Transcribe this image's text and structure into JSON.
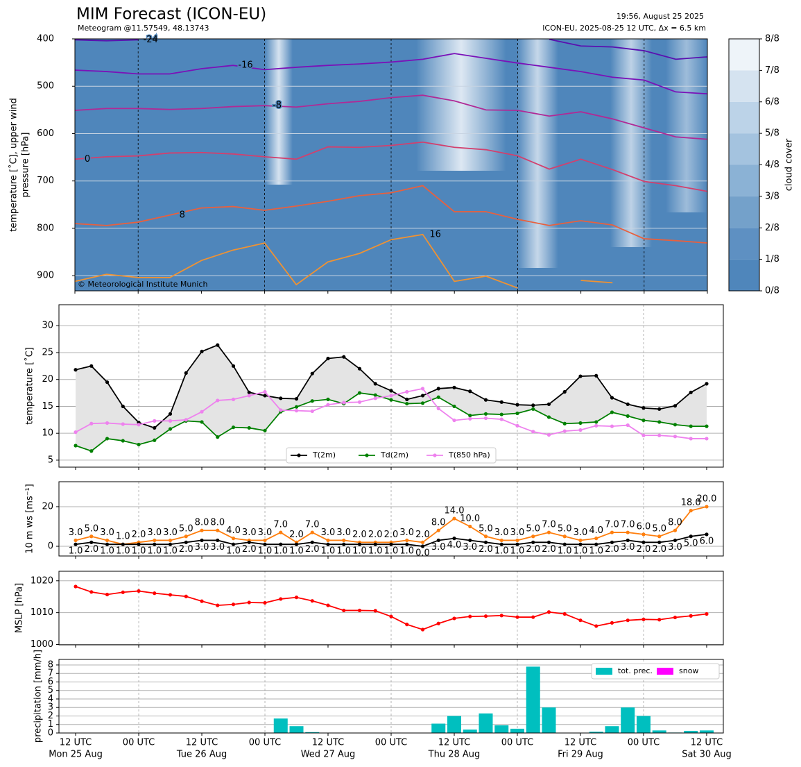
{
  "chart_data": [
    {
      "type": "contour",
      "title": "MIM Forecast (ICON-EU)",
      "subtitle": "Meteogram @11.57549, 48.13743",
      "run_time": "19:56, August 25 2025",
      "model_info": "ICON-EU, 2025-08-25 12 UTC, Δx = 6.5 km",
      "copyright": "© Meteorological Institute Munich",
      "ylabel": [
        "temperature [˚C], upper wind",
        "pressure [hPa]"
      ],
      "x": [
        0,
        6,
        12,
        18,
        24,
        30,
        36,
        42,
        48,
        54,
        60,
        66,
        72,
        78,
        84,
        90,
        96,
        102,
        108,
        114,
        120
      ],
      "xlim": [
        0,
        120
      ],
      "ylim": [
        400,
        932
      ],
      "y_inverted": true,
      "yticks": [
        400,
        500,
        600,
        700,
        800,
        900
      ],
      "grid": true,
      "series": [
        {
          "name": "-24",
          "color": "#5a10b0",
          "values": [
            402,
            404,
            402,
            null,
            null,
            null,
            null,
            null,
            null,
            null,
            null,
            null,
            null,
            null,
            null,
            401,
            415,
            417,
            425,
            443,
            438
          ]
        },
        {
          "name": "-16",
          "color": "#7a12b8",
          "values": [
            466,
            469,
            474,
            474,
            463,
            456,
            465,
            460,
            456,
            453,
            449,
            443,
            431,
            441,
            451,
            460,
            469,
            481,
            487,
            512,
            516
          ]
        },
        {
          "name": "-8",
          "color": "#b02a96",
          "values": [
            551,
            547,
            547,
            549,
            547,
            543,
            541,
            544,
            537,
            532,
            524,
            519,
            531,
            550,
            551,
            563,
            554,
            569,
            588,
            607,
            612
          ]
        },
        {
          "name": "0",
          "color": "#d2406e",
          "values": [
            654,
            649,
            647,
            641,
            640,
            643,
            649,
            654,
            628,
            629,
            625,
            618,
            629,
            634,
            647,
            675,
            654,
            676,
            701,
            710,
            722
          ]
        },
        {
          "name": "8",
          "color": "#e8603e",
          "values": [
            790,
            794,
            787,
            772,
            757,
            754,
            762,
            753,
            743,
            731,
            725,
            710,
            765,
            765,
            781,
            794,
            784,
            793,
            822,
            826,
            831
          ]
        },
        {
          "name": "16",
          "color": "#f09232",
          "values": [
            912,
            897,
            904,
            904,
            868,
            846,
            831,
            919,
            871,
            853,
            824,
            813,
            912,
            901,
            926,
            null,
            910,
            915,
            null,
            null,
            null
          ]
        }
      ],
      "colorbar": {
        "label": "cloud cover",
        "ticks": [
          {
            "value": 0,
            "label": "0/8"
          },
          {
            "value": 1,
            "label": "1/8"
          },
          {
            "value": 2,
            "label": "2/8"
          },
          {
            "value": 3,
            "label": "3/8"
          },
          {
            "value": 4,
            "label": "4/8"
          },
          {
            "value": 5,
            "label": "5/8"
          },
          {
            "value": 6,
            "label": "6/8"
          },
          {
            "value": 7,
            "label": "7/8"
          },
          {
            "value": 8,
            "label": "8/8"
          }
        ],
        "colors": [
          "#4f86bb",
          "#5e90c2",
          "#74a1ca",
          "#8bb2d5",
          "#a4c3df",
          "#bcd3e8",
          "#d5e3f0",
          "#eef4f9"
        ]
      }
    },
    {
      "type": "line",
      "ylabel": "temperature [˚C]",
      "x": [
        0,
        3,
        6,
        9,
        12,
        15,
        18,
        21,
        24,
        27,
        30,
        33,
        36,
        39,
        42,
        45,
        48,
        51,
        54,
        57,
        60,
        63,
        66,
        69,
        72,
        75,
        78,
        81,
        84,
        87,
        90,
        93,
        96,
        99,
        102,
        105,
        108,
        111,
        114,
        117,
        120
      ],
      "xlim": [
        -3.17,
        123.17
      ],
      "ylim": [
        3.7,
        33.9
      ],
      "yticks": [
        5,
        10,
        15,
        20,
        25,
        30
      ],
      "grid": true,
      "fill_between": [
        0,
        1
      ],
      "fill_color": "#e4e4e4",
      "legend": "lower center",
      "series": [
        {
          "name": "T(2m)",
          "color": "#000000",
          "values": [
            21.8,
            22.5,
            19.5,
            15.0,
            12.0,
            11.0,
            13.6,
            21.2,
            25.2,
            26.4,
            22.5,
            17.6,
            17.0,
            16.5,
            16.4,
            21.1,
            23.9,
            24.2,
            22.0,
            19.2,
            17.9,
            16.3,
            17.0,
            18.3,
            18.5,
            17.8,
            16.2,
            15.8,
            15.3,
            15.2,
            15.4,
            17.7,
            20.6,
            20.7,
            16.6,
            15.4,
            14.7,
            14.5,
            15.1,
            17.6,
            19.2
          ]
        },
        {
          "name": "Td(2m)",
          "color": "#008000",
          "values": [
            7.7,
            6.7,
            9.0,
            8.6,
            7.9,
            8.7,
            10.8,
            12.3,
            12.1,
            9.3,
            11.1,
            11.0,
            10.5,
            14.0,
            14.9,
            16.0,
            16.3,
            15.5,
            17.5,
            17.1,
            16.2,
            15.5,
            15.6,
            16.7,
            15.0,
            13.3,
            13.6,
            13.5,
            13.7,
            14.5,
            13.0,
            11.8,
            11.9,
            12.1,
            13.9,
            13.2,
            12.4,
            12.1,
            11.6,
            11.3,
            11.3
          ]
        },
        {
          "name": "T(850 hPa)",
          "color": "#ee82ee",
          "values": [
            10.2,
            11.8,
            11.9,
            11.7,
            11.6,
            12.3,
            12.3,
            12.5,
            14.0,
            16.1,
            16.3,
            17.0,
            17.7,
            14.3,
            14.2,
            14.1,
            15.3,
            15.7,
            15.8,
            16.5,
            17.0,
            17.7,
            18.3,
            14.6,
            12.4,
            12.7,
            12.8,
            12.6,
            11.4,
            10.3,
            9.7,
            10.4,
            10.6,
            11.4,
            11.3,
            11.5,
            9.6,
            9.6,
            9.4,
            9.0,
            9.0
          ]
        }
      ]
    },
    {
      "type": "line",
      "ylabel": "10 m ws [ms⁻¹]",
      "x": [
        0,
        3,
        6,
        9,
        12,
        15,
        18,
        21,
        24,
        27,
        30,
        33,
        36,
        39,
        42,
        45,
        48,
        51,
        54,
        57,
        60,
        63,
        66,
        69,
        72,
        75,
        78,
        81,
        84,
        87,
        90,
        93,
        96,
        99,
        102,
        105,
        108,
        111,
        114,
        117,
        120
      ],
      "xlim": [
        -3.17,
        123.17
      ],
      "ylim": [
        -4.9,
        32.6
      ],
      "yticks": [
        0,
        20
      ],
      "grid": true,
      "series": [
        {
          "color": "#ff7f0e",
          "label_position": "above",
          "values": [
            3,
            5,
            3,
            1,
            2,
            3,
            3,
            5,
            8,
            8,
            4,
            3,
            3,
            7,
            2,
            7,
            3,
            3,
            2,
            2,
            2,
            3,
            2,
            8,
            14,
            10,
            5,
            3,
            3,
            5,
            7,
            5,
            3,
            4,
            7,
            7,
            6,
            5,
            8,
            18,
            20
          ],
          "value_labels": [
            "3.0",
            "5.0",
            "3.0",
            "1.0",
            "2.0",
            "3.0",
            "3.0",
            "5.0",
            "8.0",
            "8.0",
            "4.0",
            "3.0",
            "3.0",
            "7.0",
            "2.0",
            "7.0",
            "3.0",
            "3.0",
            "2.0",
            "2.0",
            "2.0",
            "3.0",
            "2.0",
            "8.0",
            "14.0",
            "10.0",
            "5.0",
            "3.0",
            "3.0",
            "5.0",
            "7.0",
            "5.0",
            "3.0",
            "4.0",
            "7.0",
            "7.0",
            "6.0",
            "5.0",
            "8.0",
            "18.0",
            "20.0"
          ]
        },
        {
          "color": "#000000",
          "label_position": "below",
          "values": [
            1,
            2,
            1,
            1,
            1,
            1,
            1,
            2,
            3,
            3,
            1,
            2,
            1,
            1,
            1,
            2,
            1,
            1,
            1,
            1,
            1,
            1,
            0,
            3,
            4,
            3,
            2,
            1,
            1,
            2,
            2,
            1,
            1,
            1,
            2,
            3,
            2,
            2,
            3,
            5,
            6
          ],
          "value_labels": [
            "1.0",
            "2.0",
            "1.0",
            "1.0",
            "1.0",
            "1.0",
            "1.0",
            "2.0",
            "3.0",
            "3.0",
            "1.0",
            "2.0",
            "1.0",
            "1.0",
            "1.0",
            "2.0",
            "1.0",
            "1.0",
            "1.0",
            "1.0",
            "1.0",
            "1.0",
            "0.0",
            "3.0",
            "4.0",
            "3.0",
            "2.0",
            "1.0",
            "1.0",
            "2.0",
            "2.0",
            "1.0",
            "1.0",
            "1.0",
            "2.0",
            "3.0",
            "2.0",
            "2.0",
            "3.0",
            "5.0",
            "6.0"
          ]
        }
      ]
    },
    {
      "type": "line",
      "ylabel": "MSLP [hPa]",
      "x": [
        0,
        3,
        6,
        9,
        12,
        15,
        18,
        21,
        24,
        27,
        30,
        33,
        36,
        39,
        42,
        45,
        48,
        51,
        54,
        57,
        60,
        63,
        66,
        69,
        72,
        75,
        78,
        81,
        84,
        87,
        90,
        93,
        96,
        99,
        102,
        105,
        108,
        111,
        114,
        117,
        120
      ],
      "xlim": [
        -3.17,
        123.17
      ],
      "ylim": [
        999.9,
        1023.0
      ],
      "yticks": [
        1000,
        1010,
        1020
      ],
      "grid": true,
      "series": [
        {
          "color": "#ff0000",
          "values": [
            1018.2,
            1016.5,
            1015.7,
            1016.4,
            1016.8,
            1016.1,
            1015.6,
            1015.1,
            1013.6,
            1012.3,
            1012.6,
            1013.2,
            1013.1,
            1014.3,
            1014.8,
            1013.7,
            1012.3,
            1010.7,
            1010.7,
            1010.6,
            1008.8,
            1006.3,
            1004.7,
            1006.6,
            1008.2,
            1008.8,
            1008.9,
            1009.1,
            1008.6,
            1008.6,
            1010.2,
            1009.6,
            1007.6,
            1005.8,
            1006.8,
            1007.6,
            1007.9,
            1007.8,
            1008.5,
            1009.0,
            1009.6
          ]
        }
      ]
    },
    {
      "type": "bar",
      "ylabel": "precipitation [mm/h]",
      "x": [
        0,
        3,
        6,
        9,
        12,
        15,
        18,
        21,
        24,
        27,
        30,
        33,
        36,
        39,
        42,
        45,
        48,
        51,
        54,
        57,
        60,
        63,
        66,
        69,
        72,
        75,
        78,
        81,
        84,
        87,
        90,
        93,
        96,
        99,
        102,
        105,
        108,
        111,
        114,
        117,
        120
      ],
      "xlim": [
        -3.17,
        123.17
      ],
      "ylim": [
        0,
        8.65
      ],
      "yticks": [
        0,
        1,
        2,
        3,
        4,
        5,
        6,
        7,
        8
      ],
      "grid": true,
      "legend": "upper right",
      "xticks": [
        {
          "value": 0,
          "label": "12 UTC"
        },
        {
          "value": 12,
          "label": "00 UTC"
        },
        {
          "value": 24,
          "label": "12 UTC"
        },
        {
          "value": 36,
          "label": "00 UTC"
        },
        {
          "value": 48,
          "label": "12 UTC"
        },
        {
          "value": 60,
          "label": "00 UTC"
        },
        {
          "value": 72,
          "label": "12 UTC"
        },
        {
          "value": 84,
          "label": "00 UTC"
        },
        {
          "value": 96,
          "label": "12 UTC"
        },
        {
          "value": 108,
          "label": "00 UTC"
        },
        {
          "value": 120,
          "label": "12 UTC"
        }
      ],
      "xtick_days": [
        {
          "value": 0,
          "label": "Mon 25 Aug"
        },
        {
          "value": 24,
          "label": "Tue 26 Aug"
        },
        {
          "value": 48,
          "label": "Wed 27 Aug"
        },
        {
          "value": 72,
          "label": "Thu 28 Aug"
        },
        {
          "value": 96,
          "label": "Fri 29 Aug"
        },
        {
          "value": 120,
          "label": "Sat 30 Aug"
        }
      ],
      "vlines": [
        12,
        36,
        60,
        84,
        108
      ],
      "series": [
        {
          "name": "tot. prec.",
          "color": "#00bfbf",
          "values": [
            0,
            0,
            0,
            0,
            0,
            0,
            0,
            0,
            0,
            0,
            0,
            0,
            0,
            1.7,
            0.8,
            0.1,
            0,
            0,
            0,
            0,
            0,
            0,
            0,
            1.1,
            2.0,
            0.4,
            2.3,
            0.9,
            0.5,
            7.8,
            3.0,
            0,
            0,
            0.15,
            0.8,
            3.0,
            2.0,
            0.3,
            0.05,
            0.25,
            0.3
          ]
        },
        {
          "name": "snow",
          "color": "#ff00ff",
          "values": [
            0,
            0,
            0,
            0,
            0,
            0,
            0,
            0,
            0,
            0,
            0,
            0,
            0,
            0,
            0,
            0,
            0,
            0,
            0,
            0,
            0,
            0,
            0,
            0,
            0,
            0,
            0,
            0,
            0,
            0,
            0,
            0,
            0,
            0,
            0,
            0,
            0,
            0,
            0,
            0,
            0
          ]
        }
      ]
    }
  ]
}
